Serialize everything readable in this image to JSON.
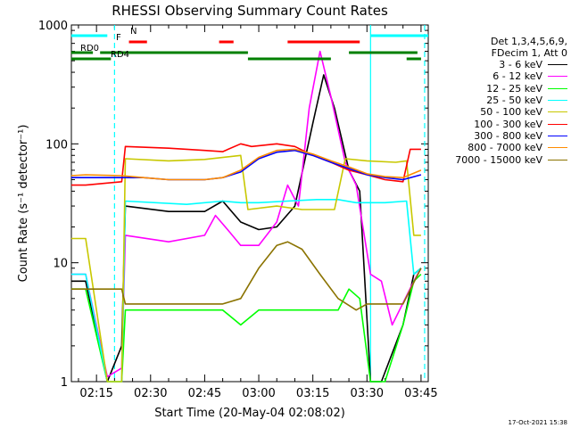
{
  "chart_data": {
    "type": "line",
    "title": "RHESSI Observing Summary Count Rates",
    "xlabel": "Start Time (20-May-04 02:08:02)",
    "ylabel": "Count Rate (s⁻¹ detector⁻¹)",
    "yscale": "log",
    "ylim": [
      1,
      1000
    ],
    "xlim": [
      "02:08:02",
      "03:47:00"
    ],
    "x_ticks": [
      "02:15",
      "02:30",
      "02:45",
      "03:00",
      "03:15",
      "03:30",
      "03:45"
    ],
    "y_ticks": [
      "1",
      "10",
      "100",
      "1000"
    ],
    "legend_position": "right",
    "legend_header": [
      "Det 1,3,4,5,6,9,",
      "FDecim 1, Att 0"
    ],
    "series": [
      {
        "name": "3 - 6 keV",
        "color": "#000000",
        "points": [
          [
            "02:08",
            7
          ],
          [
            "02:12",
            7
          ],
          [
            "02:18",
            0.5
          ],
          [
            "02:22",
            2
          ],
          [
            "02:23",
            30
          ],
          [
            "02:35",
            27
          ],
          [
            "02:45",
            27
          ],
          [
            "02:50",
            33
          ],
          [
            "02:55",
            22
          ],
          [
            "03:00",
            19
          ],
          [
            "03:05",
            20
          ],
          [
            "03:10",
            30
          ],
          [
            "03:15",
            150
          ],
          [
            "03:18",
            380
          ],
          [
            "03:21",
            200
          ],
          [
            "03:25",
            60
          ],
          [
            "03:28",
            40
          ],
          [
            "03:31",
            0.5
          ],
          [
            "03:34",
            0.5
          ],
          [
            "03:40",
            3
          ],
          [
            "03:43",
            8
          ],
          [
            "03:45",
            9
          ]
        ]
      },
      {
        "name": "6 - 12 keV",
        "color": "#ff00ff",
        "points": [
          [
            "02:08",
            8
          ],
          [
            "02:12",
            8
          ],
          [
            "02:18",
            1.1
          ],
          [
            "02:22",
            1.3
          ],
          [
            "02:23",
            17
          ],
          [
            "02:35",
            15
          ],
          [
            "02:45",
            17
          ],
          [
            "02:48",
            25
          ],
          [
            "02:52",
            18
          ],
          [
            "02:55",
            14
          ],
          [
            "03:00",
            14
          ],
          [
            "03:05",
            22
          ],
          [
            "03:08",
            45
          ],
          [
            "03:11",
            30
          ],
          [
            "03:14",
            200
          ],
          [
            "03:17",
            600
          ],
          [
            "03:20",
            250
          ],
          [
            "03:24",
            70
          ],
          [
            "03:27",
            45
          ],
          [
            "03:31",
            8
          ],
          [
            "03:34",
            7
          ],
          [
            "03:37",
            3
          ],
          [
            "03:43",
            7
          ],
          [
            "03:45",
            9
          ]
        ]
      },
      {
        "name": "12 - 25 keV",
        "color": "#00ff00",
        "points": [
          [
            "02:08",
            6
          ],
          [
            "02:12",
            6
          ],
          [
            "02:18",
            1
          ],
          [
            "02:22",
            1
          ],
          [
            "02:23",
            4
          ],
          [
            "02:35",
            4
          ],
          [
            "02:50",
            4
          ],
          [
            "02:55",
            3
          ],
          [
            "03:00",
            4
          ],
          [
            "03:06",
            4
          ],
          [
            "03:12",
            4
          ],
          [
            "03:18",
            4
          ],
          [
            "03:22",
            4
          ],
          [
            "03:25",
            6
          ],
          [
            "03:28",
            5
          ],
          [
            "03:31",
            1
          ],
          [
            "03:35",
            1
          ],
          [
            "03:40",
            3
          ],
          [
            "03:43",
            7
          ],
          [
            "03:45",
            8
          ]
        ]
      },
      {
        "name": "25 - 50 keV",
        "color": "#00ffff",
        "points": [
          [
            "02:08",
            8
          ],
          [
            "02:12",
            8
          ],
          [
            "02:18",
            1
          ],
          [
            "02:22",
            1
          ],
          [
            "02:23",
            33
          ],
          [
            "02:40",
            31
          ],
          [
            "02:50",
            33
          ],
          [
            "02:55",
            32
          ],
          [
            "03:00",
            32
          ],
          [
            "03:08",
            33
          ],
          [
            "03:16",
            34
          ],
          [
            "03:22",
            34
          ],
          [
            "03:27",
            32
          ],
          [
            "03:35",
            32
          ],
          [
            "03:41",
            33
          ],
          [
            "03:43",
            8
          ],
          [
            "03:45",
            9
          ]
        ]
      },
      {
        "name": "50 - 100 keV",
        "color": "#c8c800",
        "points": [
          [
            "02:08",
            16
          ],
          [
            "02:12",
            16
          ],
          [
            "02:18",
            1
          ],
          [
            "02:22",
            1
          ],
          [
            "02:23",
            75
          ],
          [
            "02:35",
            72
          ],
          [
            "02:45",
            74
          ],
          [
            "02:55",
            80
          ],
          [
            "02:57",
            28
          ],
          [
            "03:05",
            30
          ],
          [
            "03:12",
            28
          ],
          [
            "03:17",
            28
          ],
          [
            "03:19",
            28
          ],
          [
            "03:21",
            28
          ],
          [
            "03:24",
            75
          ],
          [
            "03:30",
            72
          ],
          [
            "03:38",
            70
          ],
          [
            "03:41",
            72
          ],
          [
            "03:43",
            17
          ],
          [
            "03:45",
            17
          ]
        ]
      },
      {
        "name": "100 - 300 keV",
        "color": "#ff0000",
        "points": [
          [
            "02:08",
            45
          ],
          [
            "02:12",
            45
          ],
          [
            "02:22",
            48
          ],
          [
            "02:23",
            95
          ],
          [
            "02:35",
            92
          ],
          [
            "02:45",
            88
          ],
          [
            "02:50",
            86
          ],
          [
            "02:55",
            100
          ],
          [
            "02:58",
            95
          ],
          [
            "03:05",
            100
          ],
          [
            "03:10",
            95
          ],
          [
            "03:15",
            80
          ],
          [
            "03:20",
            70
          ],
          [
            "03:25",
            60
          ],
          [
            "03:30",
            55
          ],
          [
            "03:35",
            50
          ],
          [
            "03:40",
            48
          ],
          [
            "03:42",
            90
          ],
          [
            "03:45",
            90
          ]
        ]
      },
      {
        "name": "300 - 800 keV",
        "color": "#0000ff",
        "points": [
          [
            "02:08",
            52
          ],
          [
            "02:12",
            52
          ],
          [
            "02:22",
            52
          ],
          [
            "02:28",
            52
          ],
          [
            "02:35",
            50
          ],
          [
            "02:45",
            50
          ],
          [
            "02:50",
            52
          ],
          [
            "02:55",
            58
          ],
          [
            "03:00",
            75
          ],
          [
            "03:05",
            85
          ],
          [
            "03:10",
            88
          ],
          [
            "03:15",
            80
          ],
          [
            "03:20",
            70
          ],
          [
            "03:25",
            62
          ],
          [
            "03:30",
            55
          ],
          [
            "03:35",
            52
          ],
          [
            "03:40",
            50
          ],
          [
            "03:45",
            55
          ]
        ]
      },
      {
        "name": "800 - 7000 keV",
        "color": "#ff8c00",
        "points": [
          [
            "02:08",
            54
          ],
          [
            "02:12",
            55
          ],
          [
            "02:22",
            54
          ],
          [
            "02:28",
            52
          ],
          [
            "02:35",
            50
          ],
          [
            "02:45",
            50
          ],
          [
            "02:50",
            52
          ],
          [
            "02:55",
            60
          ],
          [
            "03:00",
            77
          ],
          [
            "03:05",
            88
          ],
          [
            "03:10",
            90
          ],
          [
            "03:15",
            82
          ],
          [
            "03:20",
            72
          ],
          [
            "03:25",
            64
          ],
          [
            "03:30",
            56
          ],
          [
            "03:35",
            53
          ],
          [
            "03:40",
            52
          ],
          [
            "03:45",
            60
          ]
        ]
      },
      {
        "name": "7000 - 15000 keV",
        "color": "#8b7300",
        "points": [
          [
            "02:08",
            6
          ],
          [
            "02:12",
            6
          ],
          [
            "02:22",
            6
          ],
          [
            "02:23",
            4.5
          ],
          [
            "02:30",
            4.5
          ],
          [
            "02:40",
            4.5
          ],
          [
            "02:50",
            4.5
          ],
          [
            "02:55",
            5
          ],
          [
            "03:00",
            9
          ],
          [
            "03:05",
            14
          ],
          [
            "03:08",
            15
          ],
          [
            "03:12",
            13
          ],
          [
            "03:17",
            8
          ],
          [
            "03:22",
            5
          ],
          [
            "03:27",
            4
          ],
          [
            "03:30",
            4.5
          ],
          [
            "03:40",
            4.5
          ],
          [
            "03:45",
            9
          ]
        ]
      }
    ],
    "annotations": {
      "flags": [
        {
          "label": "N",
          "color": "#00ffff",
          "segments": [
            [
              "02:08",
              "02:18"
            ],
            [
              "03:31",
              "03:47"
            ]
          ]
        },
        {
          "label": "F",
          "color": "#ff0000",
          "segments": [
            [
              "02:24",
              "02:29"
            ],
            [
              "02:49",
              "02:53"
            ],
            [
              "03:08",
              "03:28"
            ]
          ]
        },
        {
          "label": "RD0",
          "color": "#008000",
          "segments": [
            [
              "02:08",
              "02:14"
            ],
            [
              "02:16",
              "02:57"
            ],
            [
              "03:25",
              "03:44"
            ]
          ]
        },
        {
          "label": "RD4",
          "color": "#008000",
          "segments": [
            [
              "02:08",
              "02:19"
            ],
            [
              "02:57",
              "03:20"
            ],
            [
              "03:41",
              "03:45"
            ]
          ]
        }
      ],
      "vlines": [
        {
          "time": "02:20",
          "color": "#00ffff",
          "style": "dashed"
        },
        {
          "time": "03:31",
          "color": "#00ffff",
          "style": "solid"
        },
        {
          "time": "03:46",
          "color": "#00ffff",
          "style": "dashed"
        }
      ]
    }
  },
  "footer": {
    "date_stamp": "17-Oct-2021 15:38"
  }
}
